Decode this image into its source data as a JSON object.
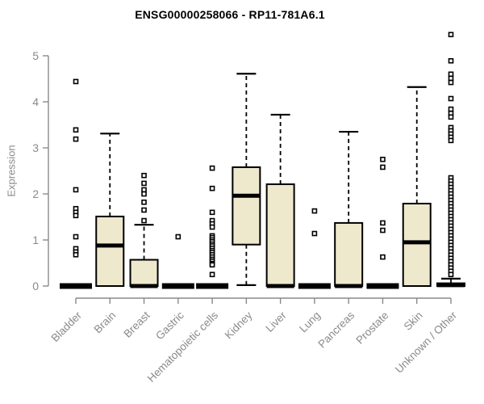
{
  "title": "ENSG00000258066 - RP11-781A6.1",
  "ylabel": "Expression",
  "chart_data": {
    "type": "boxplot",
    "title": "ENSG00000258066 - RP11-781A6.1",
    "ylabel": "Expression",
    "xlabel": "",
    "ylim": [
      0,
      5.5
    ],
    "yticks": [
      0,
      1,
      2,
      3,
      4,
      5
    ],
    "grid": false,
    "legend": "none",
    "categories": [
      "Bladder",
      "Brain",
      "Breast",
      "Gastric",
      "Hematopoietic cells",
      "Kidney",
      "Liver",
      "Lung",
      "Pancreas",
      "Prostate",
      "Skin",
      "Unknown / Other"
    ],
    "series": [
      {
        "name": "Bladder",
        "min": 0,
        "q1": 0,
        "median": 0,
        "q3": 0,
        "max": 0,
        "outliers": [
          4.44,
          3.39,
          3.19,
          2.09,
          1.68,
          1.6,
          1.53,
          1.07,
          0.81,
          0.74,
          0.68
        ]
      },
      {
        "name": "Brain",
        "min": 0,
        "q1": 0,
        "median": 0.88,
        "q3": 1.51,
        "max": 3.31,
        "outliers": []
      },
      {
        "name": "Breast",
        "min": 0,
        "q1": 0,
        "median": 0,
        "q3": 0.57,
        "max": 1.33,
        "outliers": [
          2.4,
          2.23,
          2.09,
          2.0,
          1.82,
          1.65,
          1.42
        ]
      },
      {
        "name": "Gastric",
        "min": 0,
        "q1": 0,
        "median": 0,
        "q3": 0,
        "max": 0,
        "outliers": [
          1.07
        ]
      },
      {
        "name": "Hematopoietic cells",
        "min": 0,
        "q1": 0,
        "median": 0,
        "q3": 0,
        "max": 0,
        "outliers": [
          2.56,
          2.12,
          1.6,
          1.42,
          1.35,
          1.28,
          1.09,
          1.05,
          1.0,
          0.96,
          0.91,
          0.87,
          0.82,
          0.77,
          0.73,
          0.68,
          0.63,
          0.58,
          0.54,
          0.49,
          0.46,
          0.25
        ]
      },
      {
        "name": "Kidney",
        "min": 0.02,
        "q1": 0.9,
        "median": 1.96,
        "q3": 2.58,
        "max": 4.61,
        "outliers": []
      },
      {
        "name": "Liver",
        "min": 0,
        "q1": 0,
        "median": 0,
        "q3": 2.21,
        "max": 3.72,
        "outliers": []
      },
      {
        "name": "Lung",
        "min": 0,
        "q1": 0,
        "median": 0,
        "q3": 0,
        "max": 0,
        "outliers": [
          1.63,
          1.14
        ]
      },
      {
        "name": "Pancreas",
        "min": 0,
        "q1": 0,
        "median": 0,
        "q3": 1.37,
        "max": 3.35,
        "outliers": []
      },
      {
        "name": "Prostate",
        "min": 0,
        "q1": 0,
        "median": 0,
        "q3": 0,
        "max": 0,
        "outliers": [
          2.75,
          2.58,
          1.37,
          1.21,
          0.63
        ]
      },
      {
        "name": "Skin",
        "min": 0,
        "q1": 0,
        "median": 0.95,
        "q3": 1.79,
        "max": 4.32,
        "outliers": []
      },
      {
        "name": "Unknown / Other",
        "min": 0,
        "q1": 0,
        "median": 0.02,
        "q3": 0.06,
        "max": 0.16,
        "outliers": [
          5.46,
          4.89,
          4.6,
          4.51,
          4.42,
          4.07,
          3.84,
          3.75,
          3.67,
          3.44,
          3.37,
          3.3,
          3.23,
          3.16,
          2.35,
          2.28,
          2.21,
          2.14,
          2.07,
          2.0,
          1.93,
          1.86,
          1.79,
          1.72,
          1.65,
          1.58,
          1.51,
          1.44,
          1.37,
          1.3,
          1.23,
          1.16,
          1.09,
          1.02,
          0.95,
          0.88,
          0.81,
          0.74,
          0.67,
          0.6,
          0.53,
          0.46,
          0.39,
          0.32,
          0.25
        ]
      }
    ],
    "colors": {
      "box_fill": "#EEE8CD",
      "box_stroke": "#000000",
      "median": "#000000",
      "whisker": "#000000",
      "outlier_fill": "#ffffff",
      "outlier_stroke": "#000000",
      "axis": "#8a8a8a",
      "tick_label": "#8a8a8a",
      "title": "#000000",
      "background": "#ffffff"
    }
  }
}
